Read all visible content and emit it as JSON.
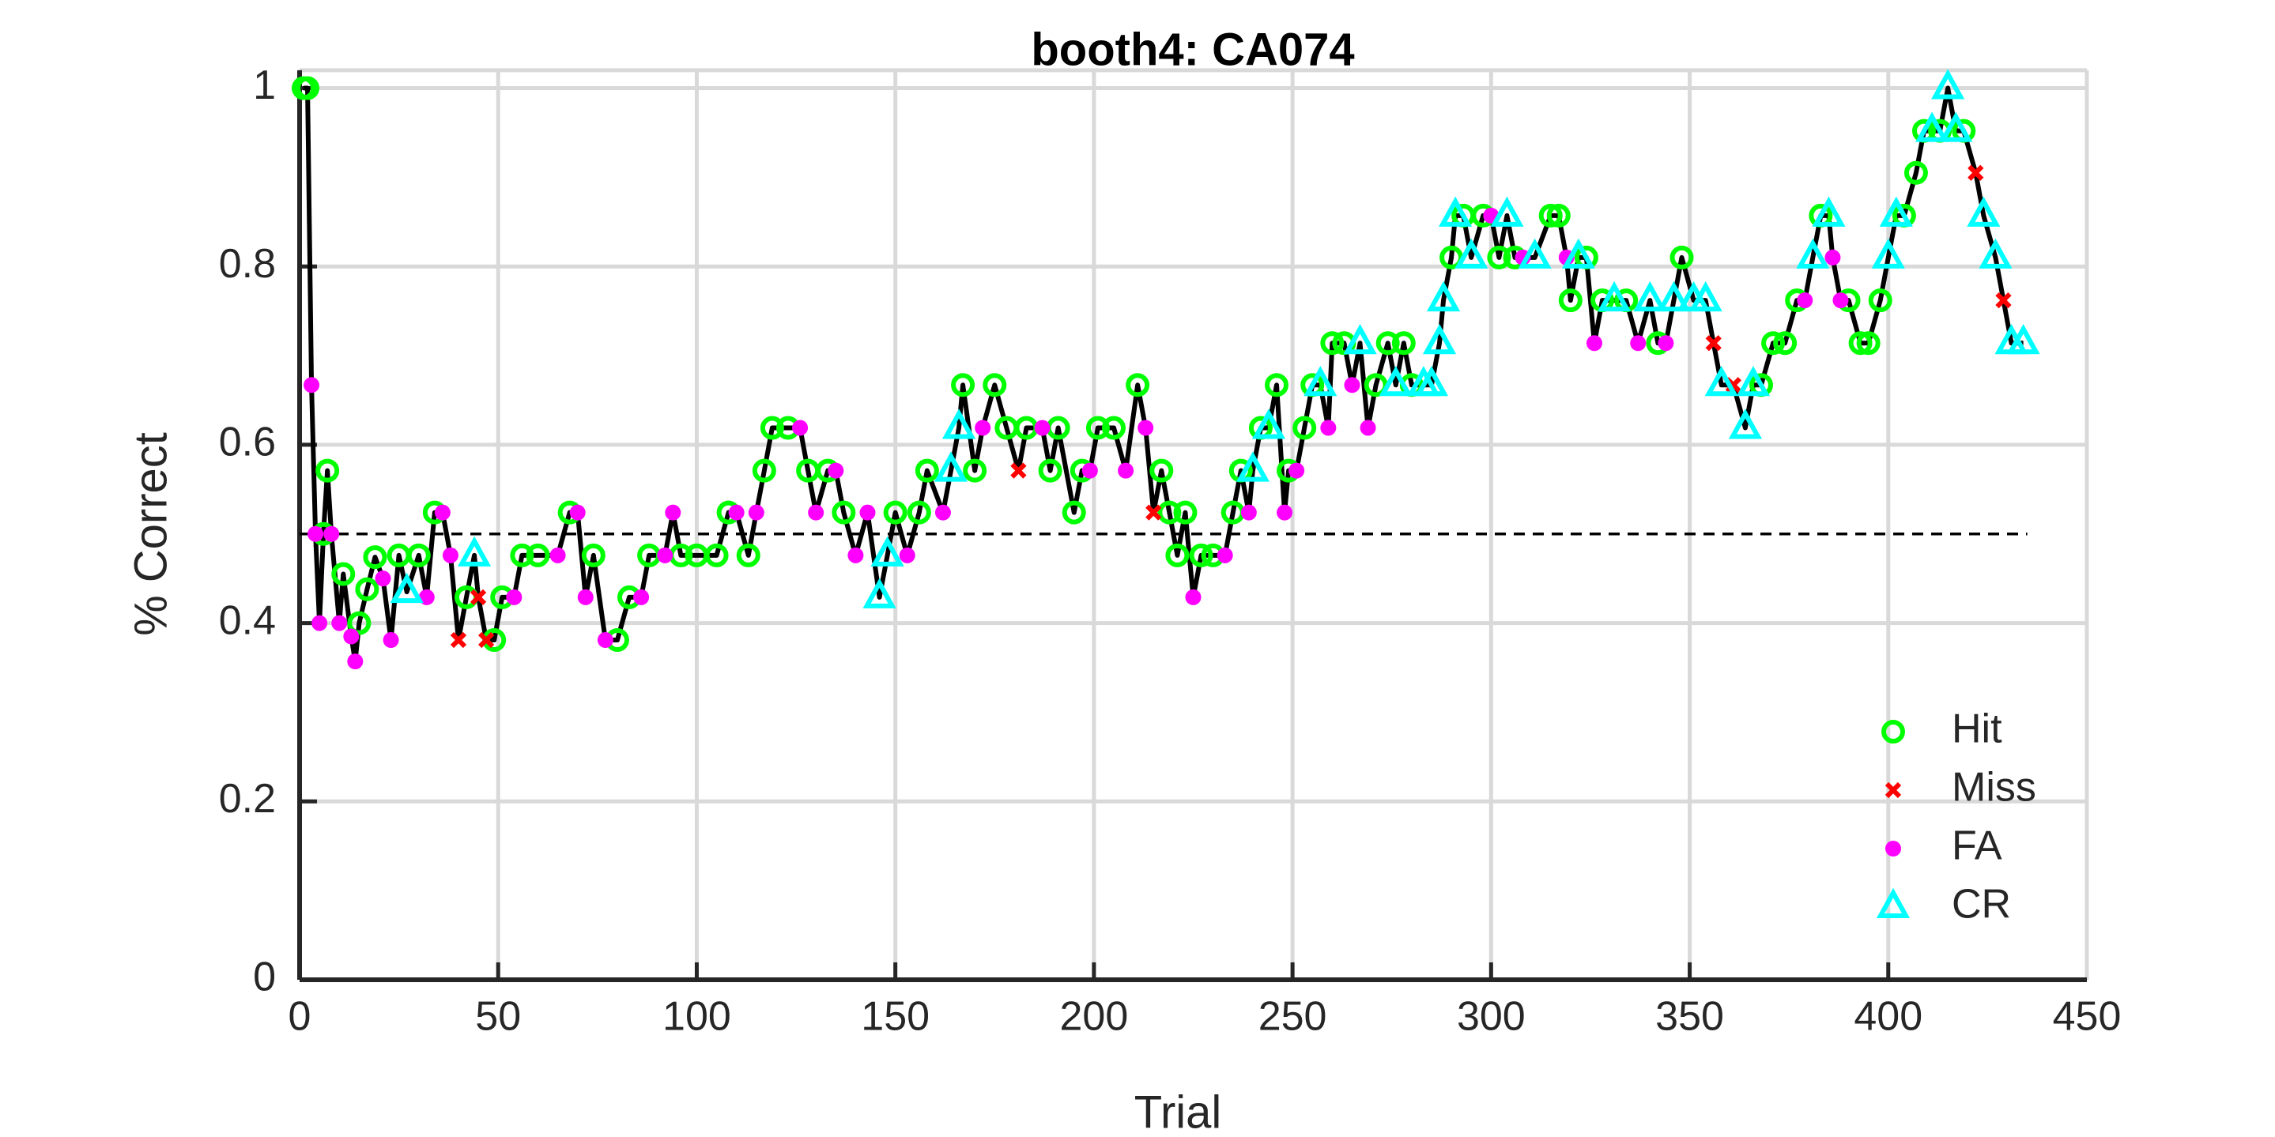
{
  "chart_data": {
    "type": "line",
    "title": "booth4: CA074",
    "xlabel": "Trial",
    "ylabel": "% Correct",
    "xlim": [
      0,
      450
    ],
    "xticks": [
      0,
      50,
      100,
      150,
      200,
      250,
      300,
      350,
      400,
      450
    ],
    "ylim": [
      0,
      1.02
    ],
    "yticks": [
      0,
      0.2,
      0.4,
      0.6,
      0.8,
      1
    ],
    "grid": true,
    "legend": "lower right",
    "reference_line": {
      "value": 0.5,
      "x": [
        0,
        435
      ],
      "color": "#000000",
      "style": "dashed"
    },
    "line": {
      "color": "#000000",
      "x": [
        1,
        2,
        3,
        4,
        5,
        6,
        7,
        8,
        10,
        11,
        13,
        14,
        15,
        17,
        19,
        21,
        23,
        25,
        27,
        30,
        32,
        34,
        36,
        38,
        40,
        42,
        44,
        45,
        47,
        49,
        51,
        54,
        56,
        60,
        65,
        68,
        70,
        72,
        74,
        77,
        80,
        83,
        86,
        88,
        92,
        94,
        96,
        100,
        105,
        108,
        110,
        113,
        115,
        117,
        119,
        123,
        126,
        128,
        130,
        133,
        135,
        137,
        140,
        143,
        146,
        148,
        150,
        153,
        156,
        158,
        162,
        164,
        166,
        167,
        170,
        172,
        175,
        178,
        181,
        183,
        187,
        189,
        191,
        195,
        197,
        199,
        201,
        205,
        208,
        211,
        213,
        215,
        217,
        219,
        221,
        223,
        225,
        227,
        230,
        233,
        235,
        237,
        239,
        240,
        242,
        244,
        246,
        248,
        249,
        251,
        253,
        255,
        257,
        259,
        260,
        263,
        265,
        267,
        269,
        271,
        274,
        276,
        278,
        280,
        283,
        285,
        287,
        288,
        290,
        291,
        293,
        295,
        298,
        300,
        302,
        304,
        306,
        308,
        311,
        315,
        317,
        319,
        320,
        322,
        324,
        326,
        328,
        331,
        334,
        337,
        340,
        342,
        344,
        346,
        348,
        351,
        354,
        356,
        358,
        361,
        364,
        366,
        368,
        371,
        374,
        377,
        379,
        381,
        383,
        385,
        386,
        388,
        390,
        393,
        395,
        398,
        400,
        402,
        404,
        407,
        409,
        411,
        413,
        415,
        417,
        419,
        422,
        424,
        427,
        429,
        431,
        434
      ],
      "values": [
        1,
        1,
        0.667,
        0.5,
        0.4,
        0.5,
        0.571,
        0.5,
        0.4,
        0.455,
        0.385,
        0.357,
        0.4,
        0.438,
        0.474,
        0.45,
        0.381,
        0.476,
        0.435,
        0.476,
        0.429,
        0.524,
        0.524,
        0.476,
        0.381,
        0.429,
        0.476,
        0.429,
        0.381,
        0.381,
        0.429,
        0.429,
        0.476,
        0.476,
        0.476,
        0.524,
        0.524,
        0.429,
        0.476,
        0.381,
        0.381,
        0.429,
        0.429,
        0.476,
        0.476,
        0.524,
        0.476,
        0.476,
        0.476,
        0.524,
        0.524,
        0.476,
        0.524,
        0.571,
        0.619,
        0.619,
        0.619,
        0.571,
        0.524,
        0.571,
        0.571,
        0.524,
        0.476,
        0.524,
        0.429,
        0.476,
        0.524,
        0.476,
        0.524,
        0.571,
        0.524,
        0.571,
        0.619,
        0.667,
        0.571,
        0.619,
        0.667,
        0.619,
        0.571,
        0.619,
        0.619,
        0.571,
        0.619,
        0.524,
        0.571,
        0.571,
        0.619,
        0.619,
        0.571,
        0.667,
        0.619,
        0.524,
        0.571,
        0.524,
        0.476,
        0.524,
        0.429,
        0.476,
        0.476,
        0.476,
        0.524,
        0.571,
        0.524,
        0.571,
        0.619,
        0.619,
        0.667,
        0.524,
        0.571,
        0.571,
        0.619,
        0.667,
        0.667,
        0.619,
        0.714,
        0.714,
        0.667,
        0.714,
        0.619,
        0.667,
        0.714,
        0.667,
        0.714,
        0.667,
        0.667,
        0.667,
        0.714,
        0.762,
        0.81,
        0.857,
        0.857,
        0.81,
        0.857,
        0.857,
        0.81,
        0.857,
        0.81,
        0.81,
        0.81,
        0.857,
        0.857,
        0.81,
        0.762,
        0.81,
        0.81,
        0.714,
        0.762,
        0.762,
        0.762,
        0.714,
        0.762,
        0.714,
        0.714,
        0.762,
        0.81,
        0.762,
        0.762,
        0.714,
        0.667,
        0.667,
        0.619,
        0.667,
        0.667,
        0.714,
        0.714,
        0.762,
        0.762,
        0.81,
        0.857,
        0.857,
        0.81,
        0.762,
        0.762,
        0.714,
        0.714,
        0.762,
        0.81,
        0.857,
        0.857,
        0.905,
        0.952,
        0.952,
        0.952,
        1,
        0.952,
        0.952,
        0.905,
        0.857,
        0.81,
        0.762,
        0.714,
        0.714
      ]
    },
    "series": [
      {
        "name": "Hit",
        "color": "#00ff00",
        "marker": "circle",
        "x": [
          1,
          2,
          6,
          7,
          11,
          15,
          17,
          19,
          25,
          30,
          34,
          42,
          49,
          51,
          56,
          60,
          68,
          74,
          80,
          83,
          88,
          96,
          100,
          105,
          108,
          113,
          117,
          119,
          123,
          128,
          133,
          137,
          150,
          156,
          158,
          167,
          170,
          175,
          178,
          183,
          189,
          191,
          195,
          197,
          201,
          205,
          211,
          217,
          219,
          221,
          223,
          227,
          230,
          235,
          237,
          242,
          246,
          249,
          253,
          255,
          260,
          263,
          271,
          274,
          278,
          280,
          290,
          293,
          298,
          302,
          306,
          315,
          317,
          320,
          324,
          328,
          334,
          342,
          348,
          368,
          371,
          374,
          377,
          383,
          390,
          393,
          395,
          398,
          404,
          407,
          409,
          413,
          419
        ],
        "values": [
          1,
          1,
          0.5,
          0.571,
          0.455,
          0.4,
          0.438,
          0.474,
          0.476,
          0.476,
          0.524,
          0.429,
          0.381,
          0.429,
          0.476,
          0.476,
          0.524,
          0.476,
          0.381,
          0.429,
          0.476,
          0.476,
          0.476,
          0.476,
          0.524,
          0.476,
          0.571,
          0.619,
          0.619,
          0.571,
          0.571,
          0.524,
          0.524,
          0.524,
          0.571,
          0.667,
          0.571,
          0.667,
          0.619,
          0.619,
          0.571,
          0.619,
          0.524,
          0.571,
          0.619,
          0.619,
          0.667,
          0.571,
          0.524,
          0.476,
          0.524,
          0.476,
          0.476,
          0.524,
          0.571,
          0.619,
          0.667,
          0.571,
          0.619,
          0.667,
          0.714,
          0.714,
          0.667,
          0.714,
          0.714,
          0.667,
          0.81,
          0.857,
          0.857,
          0.81,
          0.81,
          0.857,
          0.857,
          0.762,
          0.81,
          0.762,
          0.762,
          0.714,
          0.81,
          0.667,
          0.714,
          0.714,
          0.762,
          0.857,
          0.762,
          0.714,
          0.714,
          0.762,
          0.857,
          0.905,
          0.952,
          0.952,
          0.952
        ]
      },
      {
        "name": "Miss",
        "color": "#ff0000",
        "marker": "x",
        "x": [
          40,
          45,
          47,
          181,
          215,
          356,
          361,
          422,
          429
        ],
        "values": [
          0.381,
          0.429,
          0.381,
          0.571,
          0.524,
          0.714,
          0.667,
          0.905,
          0.762
        ]
      },
      {
        "name": "FA",
        "color": "#ff00ff",
        "marker": "dot",
        "x": [
          3,
          4,
          5,
          8,
          10,
          13,
          14,
          21,
          23,
          32,
          36,
          38,
          54,
          65,
          70,
          72,
          77,
          86,
          92,
          94,
          110,
          115,
          126,
          130,
          135,
          140,
          143,
          153,
          162,
          172,
          187,
          199,
          208,
          213,
          225,
          233,
          239,
          248,
          251,
          259,
          265,
          269,
          300,
          308,
          319,
          326,
          337,
          344,
          379,
          386,
          388
        ],
        "values": [
          0.667,
          0.5,
          0.4,
          0.5,
          0.4,
          0.385,
          0.357,
          0.45,
          0.381,
          0.429,
          0.524,
          0.476,
          0.429,
          0.476,
          0.524,
          0.429,
          0.381,
          0.429,
          0.476,
          0.524,
          0.524,
          0.524,
          0.619,
          0.524,
          0.571,
          0.476,
          0.524,
          0.476,
          0.524,
          0.619,
          0.619,
          0.571,
          0.571,
          0.619,
          0.429,
          0.476,
          0.524,
          0.524,
          0.571,
          0.619,
          0.667,
          0.619,
          0.857,
          0.81,
          0.81,
          0.714,
          0.714,
          0.714,
          0.762,
          0.81,
          0.762
        ]
      },
      {
        "name": "CR",
        "color": "#00ffff",
        "marker": "triangle",
        "x": [
          27,
          44,
          146,
          148,
          164,
          166,
          240,
          244,
          257,
          267,
          276,
          283,
          285,
          287,
          288,
          291,
          295,
          304,
          311,
          322,
          331,
          340,
          346,
          351,
          354,
          358,
          364,
          366,
          381,
          385,
          400,
          402,
          411,
          415,
          417,
          424,
          427,
          431,
          434
        ],
        "values": [
          0.435,
          0.476,
          0.429,
          0.476,
          0.571,
          0.619,
          0.571,
          0.619,
          0.667,
          0.714,
          0.667,
          0.667,
          0.667,
          0.714,
          0.762,
          0.857,
          0.81,
          0.857,
          0.81,
          0.81,
          0.762,
          0.762,
          0.762,
          0.762,
          0.762,
          0.667,
          0.619,
          0.667,
          0.81,
          0.857,
          0.81,
          0.857,
          0.952,
          1,
          0.952,
          0.857,
          0.81,
          0.714,
          0.714
        ]
      }
    ]
  }
}
